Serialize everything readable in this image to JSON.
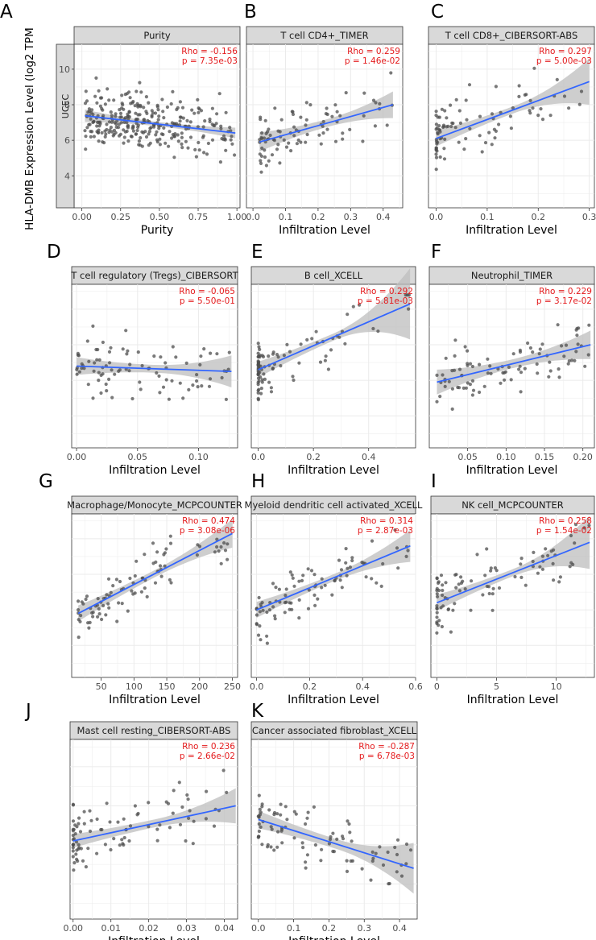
{
  "figure": {
    "ylabel": "HLA-DMB Expression Level (log2 TPM",
    "cancer_label": "UCEC",
    "y_ticks": [
      4,
      6,
      8,
      10
    ]
  },
  "colors": {
    "point": "#4d4d4d",
    "line": "#3366ff",
    "band": "#bdbdbd",
    "strip": "#d9d9d9",
    "annotation": "#e41a1c",
    "grid": "#ebebeb"
  },
  "chart_data": [
    {
      "type": "scatter",
      "letter": "A",
      "title": "Purity",
      "xlabel": "Purity",
      "rho": "Rho = -0.156",
      "p": "p = 7.35e-03",
      "xlim": [
        -0.05,
        1.02
      ],
      "ylim": [
        2.2,
        11.4
      ],
      "x_ticks": [
        0,
        0.25,
        0.5,
        0.75,
        1
      ],
      "x_tick_labels": [
        "0.00",
        "0.25",
        "0.50",
        "0.75",
        "1.00"
      ],
      "n": 300,
      "x_range": [
        0.02,
        0.99
      ],
      "x_skew": 0.7,
      "fit_start": [
        0,
        7.4
      ],
      "fit_end": [
        1,
        6.4
      ],
      "band": [
        0.35,
        0.12,
        0.3
      ],
      "spread": 1.55,
      "seed": 11
    },
    {
      "type": "scatter",
      "letter": "B",
      "title": "T cell CD4+_TIMER",
      "xlabel": "Infiltration Level",
      "rho": "Rho = 0.259",
      "p": "p = 1.46e-02",
      "xlim": [
        -0.02,
        0.46
      ],
      "ylim": [
        2.2,
        11.4
      ],
      "x_ticks": [
        0,
        0.1,
        0.2,
        0.3,
        0.4
      ],
      "x_tick_labels": [
        "0.0",
        "0.1",
        "0.2",
        "0.3",
        "0.4"
      ],
      "n": 90,
      "x_range": [
        0.02,
        0.43
      ],
      "x_skew": 1.6,
      "fit_start": [
        0,
        5.8
      ],
      "fit_end": [
        0.43,
        8.0
      ],
      "band": [
        0.55,
        0.22,
        0.75
      ],
      "spread": 1.6,
      "seed": 23
    },
    {
      "type": "scatter",
      "letter": "C",
      "title": "T cell CD8+_CIBERSORT-ABS",
      "xlabel": "Infiltration Level",
      "rho": "Rho = 0.297",
      "p": "p = 5.00e-03",
      "xlim": [
        -0.015,
        0.31
      ],
      "ylim": [
        2.2,
        11.4
      ],
      "x_ticks": [
        0,
        0.1,
        0.2,
        0.3
      ],
      "x_tick_labels": [
        "0.0",
        "0.1",
        "0.2",
        "0.3"
      ],
      "n": 90,
      "x_range": [
        0,
        0.3
      ],
      "x_skew": 2.6,
      "fit_start": [
        0,
        6.1
      ],
      "fit_end": [
        0.3,
        9.3
      ],
      "band": [
        0.45,
        0.2,
        1.3
      ],
      "spread": 1.6,
      "seed": 37
    },
    {
      "type": "scatter",
      "letter": "D",
      "title": "T cell regulatory (Tregs)_CIBERSORT",
      "xlabel": "Infiltration Level",
      "rho": "Rho = -0.065",
      "p": "p = 5.50e-01",
      "xlim": [
        -0.004,
        0.132
      ],
      "ylim": [
        2.2,
        11.4
      ],
      "x_ticks": [
        0,
        0.05,
        0.1
      ],
      "x_tick_labels": [
        "0.00",
        "0.05",
        "0.10"
      ],
      "n": 90,
      "x_range": [
        0,
        0.127
      ],
      "x_skew": 1.5,
      "fit_start": [
        0,
        6.8
      ],
      "fit_end": [
        0.127,
        6.5
      ],
      "band": [
        0.5,
        0.22,
        0.9
      ],
      "spread": 1.6,
      "seed": 41
    },
    {
      "type": "scatter",
      "letter": "E",
      "title": "B cell_XCELL",
      "xlabel": "Infiltration Level",
      "rho": "Rho = 0.292",
      "p": "p = 5.81e-03",
      "xlim": [
        -0.025,
        0.57
      ],
      "ylim": [
        2.2,
        11.4
      ],
      "x_ticks": [
        0,
        0.2,
        0.4
      ],
      "x_tick_labels": [
        "0.0",
        "0.2",
        "0.4"
      ],
      "n": 90,
      "x_range": [
        0,
        0.55
      ],
      "x_skew": 4.2,
      "fit_start": [
        0,
        6.6
      ],
      "fit_end": [
        0.55,
        10.3
      ],
      "band": [
        0.45,
        0.2,
        2.0
      ],
      "spread": 1.6,
      "seed": 53
    },
    {
      "type": "scatter",
      "letter": "F",
      "title": "Neutrophil_TIMER",
      "xlabel": "Infiltration Level",
      "rho": "Rho = 0.229",
      "p": "p = 3.17e-02",
      "xlim": [
        0.0,
        0.215
      ],
      "ylim": [
        2.2,
        11.4
      ],
      "x_ticks": [
        0.05,
        0.1,
        0.15,
        0.2
      ],
      "x_tick_labels": [
        "0.05",
        "0.10",
        "0.15",
        "0.20"
      ],
      "n": 90,
      "x_range": [
        0.01,
        0.21
      ],
      "x_skew": 1.2,
      "fit_start": [
        0.01,
        5.9
      ],
      "fit_end": [
        0.21,
        8.0
      ],
      "band": [
        0.7,
        0.25,
        0.8
      ],
      "spread": 1.5,
      "seed": 67
    },
    {
      "type": "scatter",
      "letter": "G",
      "title": "Macrophage/Monocyte_MCPCOUNTER",
      "xlabel": "Infiltration Level",
      "rho": "Rho = 0.474",
      "p": "p = 3.08e-06",
      "xlim": [
        5,
        258
      ],
      "ylim": [
        2.2,
        11.4
      ],
      "x_ticks": [
        50,
        100,
        150,
        200,
        250
      ],
      "x_tick_labels": [
        "50",
        "100",
        "150",
        "200",
        "250"
      ],
      "n": 90,
      "x_range": [
        15,
        250
      ],
      "x_skew": 1.9,
      "fit_start": [
        15,
        5.8
      ],
      "fit_end": [
        250,
        10.3
      ],
      "band": [
        0.45,
        0.2,
        0.8
      ],
      "spread": 1.3,
      "seed": 71
    },
    {
      "type": "scatter",
      "letter": "H",
      "title": "Myeloid dendritic cell activated_XCELL",
      "xlabel": "Infiltration Level",
      "rho": "Rho = 0.314",
      "p": "p = 2.87e-03",
      "xlim": [
        -0.02,
        0.6
      ],
      "ylim": [
        2.2,
        11.4
      ],
      "x_ticks": [
        0,
        0.2,
        0.4,
        0.6
      ],
      "x_tick_labels": [
        "0.0",
        "0.2",
        "0.4",
        "0.6"
      ],
      "n": 90,
      "x_range": [
        0,
        0.58
      ],
      "x_skew": 1.7,
      "fit_start": [
        0,
        6.0
      ],
      "fit_end": [
        0.58,
        9.6
      ],
      "band": [
        0.45,
        0.2,
        0.9
      ],
      "spread": 1.5,
      "seed": 83
    },
    {
      "type": "scatter",
      "letter": "I",
      "title": "NK cell_MCPCOUNTER",
      "xlabel": "Infiltration Level",
      "rho": "Rho = 0.258",
      "p": "p = 1.54e-02",
      "xlim": [
        -0.5,
        13.2
      ],
      "ylim": [
        2.2,
        11.4
      ],
      "x_ticks": [
        0,
        5,
        10
      ],
      "x_tick_labels": [
        "0",
        "5",
        "10"
      ],
      "n": 90,
      "x_range": [
        0,
        12.8
      ],
      "x_skew": 2.6,
      "fit_start": [
        0,
        6.4
      ],
      "fit_end": [
        12.8,
        9.8
      ],
      "band": [
        0.45,
        0.2,
        1.5
      ],
      "spread": 1.5,
      "seed": 97
    },
    {
      "type": "scatter",
      "letter": "J",
      "title": "Mast cell resting_CIBERSORT-ABS",
      "xlabel": "Infiltration Level",
      "rho": "Rho = 0.236",
      "p": "p = 2.66e-02",
      "xlim": [
        -0.0008,
        0.0435
      ],
      "ylim": [
        2.2,
        11.4
      ],
      "x_ticks": [
        0,
        0.01,
        0.02,
        0.03,
        0.04
      ],
      "x_tick_labels": [
        "0.00",
        "0.01",
        "0.02",
        "0.03",
        "0.04"
      ],
      "n": 90,
      "x_range": [
        0,
        0.043
      ],
      "x_skew": 3.0,
      "fit_start": [
        0,
        6.2
      ],
      "fit_end": [
        0.043,
        8.0
      ],
      "band": [
        0.35,
        0.2,
        0.9
      ],
      "spread": 1.6,
      "seed": 103
    },
    {
      "type": "scatter",
      "letter": "K",
      "title": "Cancer associated fibroblast_XCELL",
      "xlabel": "Infiltration Level",
      "rho": "Rho = -0.287",
      "p": "p = 6.78e-03",
      "xlim": [
        -0.02,
        0.45
      ],
      "ylim": [
        2.2,
        11.4
      ],
      "x_ticks": [
        0,
        0.1,
        0.2,
        0.3,
        0.4
      ],
      "x_tick_labels": [
        "0.0",
        "0.1",
        "0.2",
        "0.3",
        "0.4"
      ],
      "n": 90,
      "x_range": [
        0,
        0.44
      ],
      "x_skew": 1.9,
      "fit_start": [
        0,
        7.3
      ],
      "fit_end": [
        0.44,
        4.8
      ],
      "band": [
        0.45,
        0.25,
        1.3
      ],
      "spread": 1.5,
      "seed": 109
    }
  ]
}
